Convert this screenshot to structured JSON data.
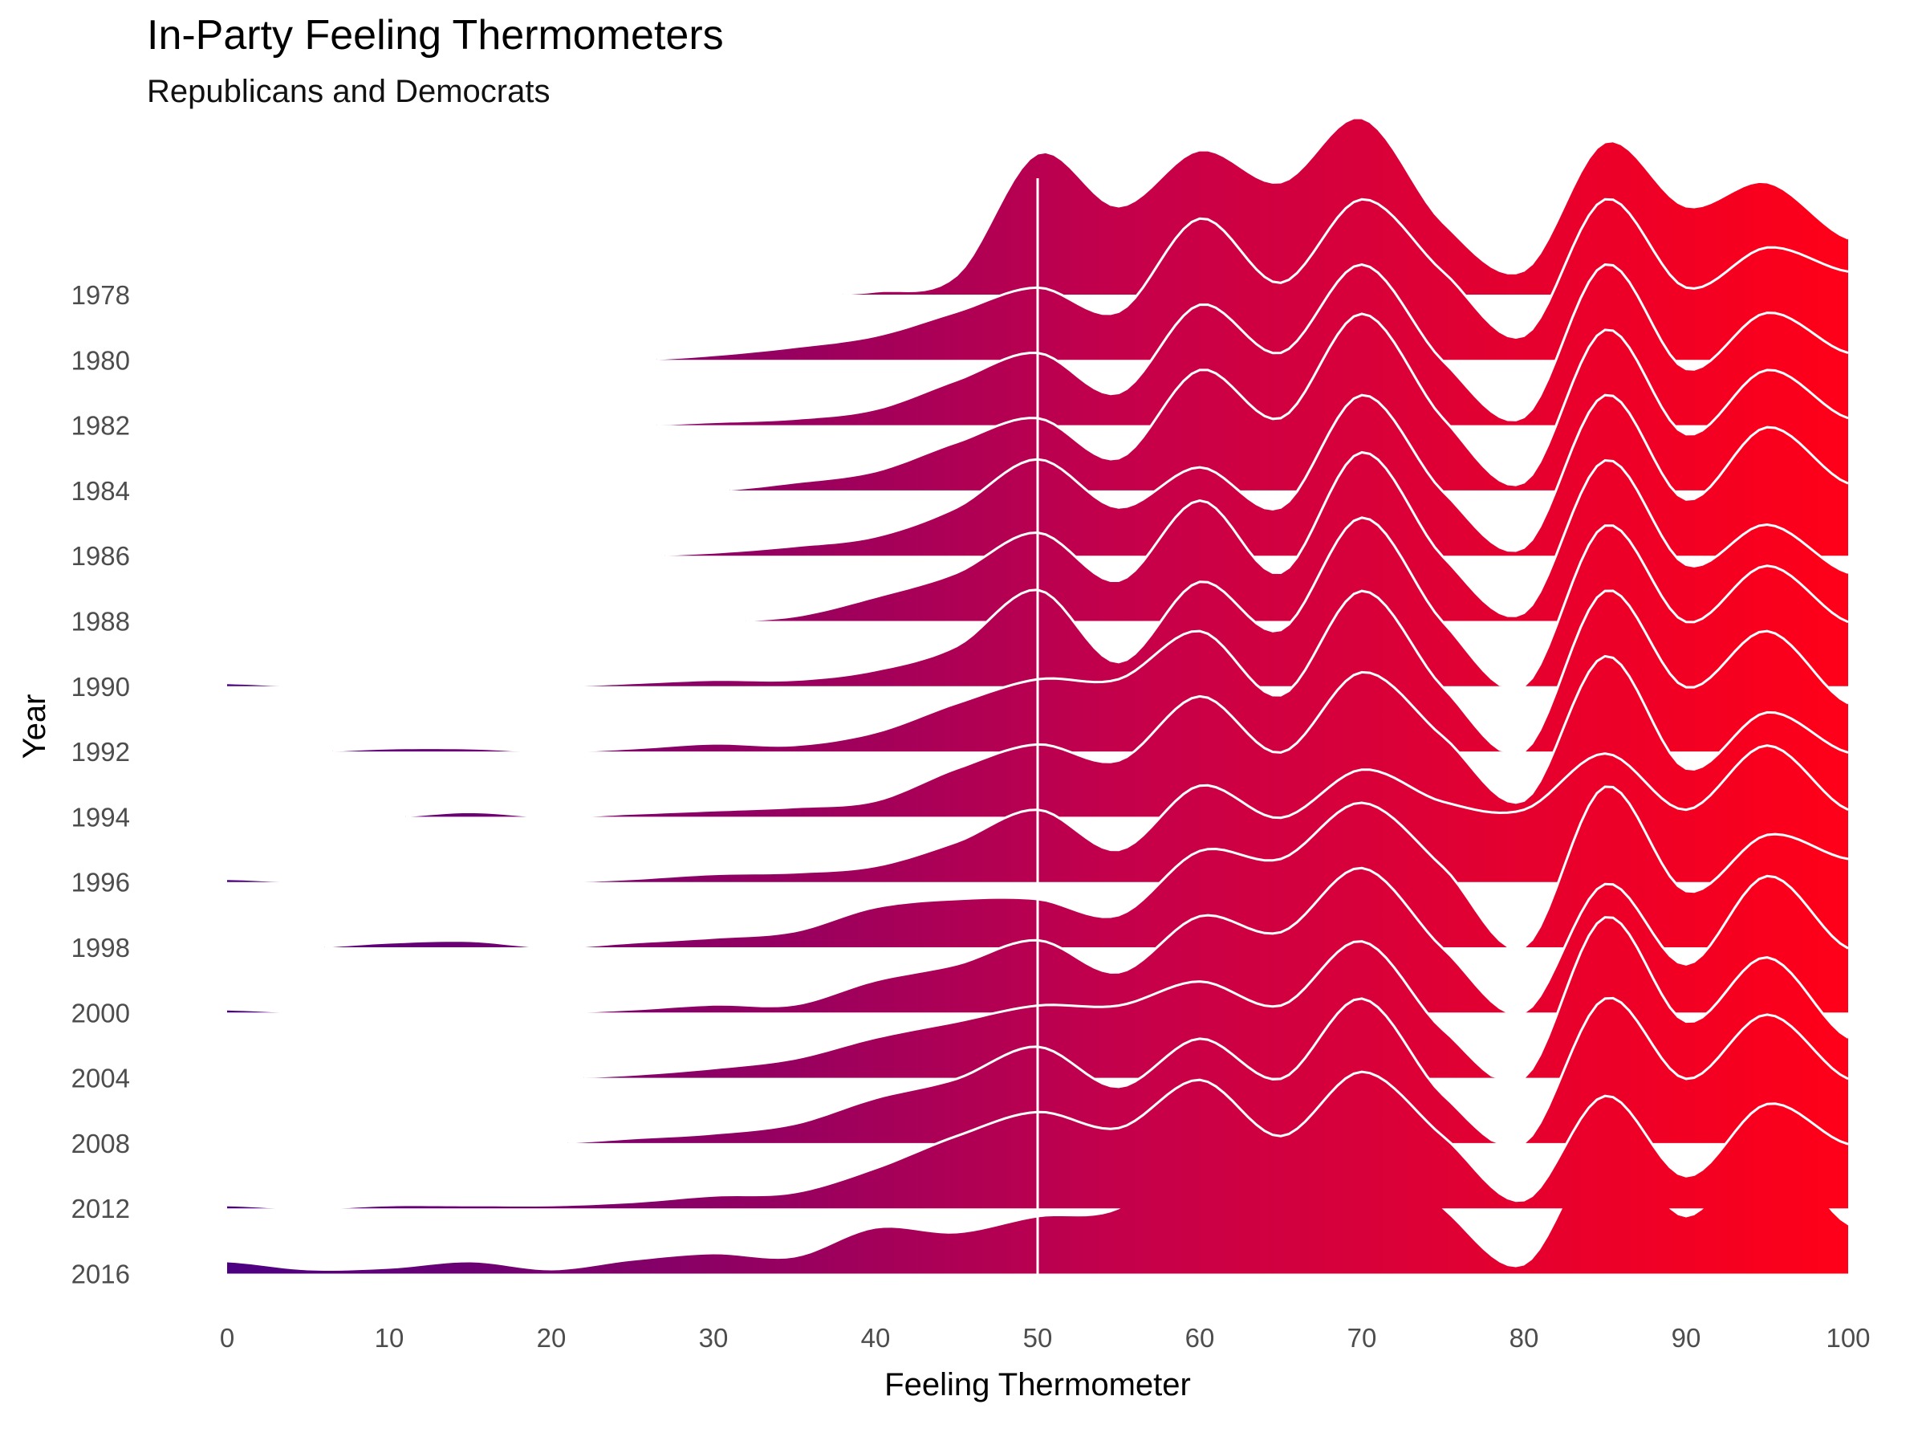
{
  "chart_data": {
    "type": "ridgeline",
    "title": "In-Party Feeling Thermometers",
    "subtitle": "Republicans and Democrats",
    "xlabel": "Feeling Thermometer",
    "ylabel": "Year",
    "xlim": [
      0,
      100
    ],
    "x_ticks": [
      0,
      10,
      20,
      30,
      40,
      50,
      60,
      70,
      80,
      90,
      100
    ],
    "years": [
      "1978",
      "1980",
      "1982",
      "1984",
      "1986",
      "1988",
      "1990",
      "1992",
      "1994",
      "1996",
      "1998",
      "2000",
      "2004",
      "2008",
      "2012",
      "2016"
    ],
    "reference_line_x": 50,
    "x_grid": [
      0,
      5,
      10,
      15,
      20,
      25,
      30,
      35,
      40,
      45,
      50,
      55,
      60,
      65,
      70,
      75,
      80,
      85,
      90,
      95,
      100
    ],
    "series": [
      {
        "year": "1978",
        "density": [
          0,
          0,
          0,
          0,
          0,
          0,
          0,
          0,
          0.02,
          0.12,
          0.88,
          0.55,
          0.9,
          0.7,
          1.1,
          0.45,
          0.15,
          0.95,
          0.55,
          0.7,
          0.35
        ]
      },
      {
        "year": "1980",
        "density": [
          0,
          0,
          0,
          0,
          0,
          0,
          0.03,
          0.08,
          0.15,
          0.3,
          0.45,
          0.3,
          0.88,
          0.48,
          1.0,
          0.55,
          0.15,
          1.0,
          0.45,
          0.7,
          0.55
        ]
      },
      {
        "year": "1982",
        "density": [
          0,
          0,
          0,
          0,
          0,
          0,
          0.02,
          0.04,
          0.1,
          0.28,
          0.45,
          0.2,
          0.75,
          0.45,
          1.0,
          0.4,
          0.05,
          1.0,
          0.35,
          0.7,
          0.45
        ]
      },
      {
        "year": "1984",
        "density": [
          0,
          0,
          0,
          0,
          0,
          0,
          0,
          0.05,
          0.12,
          0.3,
          0.45,
          0.2,
          0.75,
          0.45,
          1.1,
          0.45,
          0.05,
          1.0,
          0.35,
          0.75,
          0.45
        ]
      },
      {
        "year": "1986",
        "density": [
          0,
          0,
          0,
          0,
          0,
          0,
          0.02,
          0.06,
          0.12,
          0.3,
          0.6,
          0.3,
          0.55,
          0.3,
          1.0,
          0.4,
          0.05,
          1.0,
          0.35,
          0.8,
          0.45
        ]
      },
      {
        "year": "1988",
        "density": [
          0,
          0,
          0,
          0,
          0,
          0,
          0,
          0.03,
          0.15,
          0.3,
          0.55,
          0.25,
          0.75,
          0.3,
          1.05,
          0.4,
          0.05,
          1.0,
          0.35,
          0.6,
          0.3
        ]
      },
      {
        "year": "1990",
        "density": [
          0.02,
          0,
          0,
          0,
          0,
          0.02,
          0.04,
          0.04,
          0.1,
          0.25,
          0.6,
          0.15,
          0.65,
          0.35,
          1.05,
          0.4,
          0.0,
          1.0,
          0.4,
          0.75,
          0.4
        ]
      },
      {
        "year": "1992",
        "density": [
          0,
          0,
          0.02,
          0.02,
          0,
          0.02,
          0.05,
          0.04,
          0.12,
          0.3,
          0.45,
          0.45,
          0.75,
          0.35,
          1.0,
          0.4,
          0.0,
          1.0,
          0.4,
          0.75,
          0.3
        ]
      },
      {
        "year": "1994",
        "density": [
          0,
          0,
          0,
          0.03,
          0,
          0.02,
          0.04,
          0.06,
          0.1,
          0.3,
          0.45,
          0.35,
          0.75,
          0.4,
          0.9,
          0.5,
          0.1,
          1.0,
          0.3,
          0.65,
          0.4
        ]
      },
      {
        "year": "1996",
        "density": [
          0.02,
          0,
          0,
          0,
          0,
          0.02,
          0.05,
          0.06,
          0.1,
          0.25,
          0.45,
          0.2,
          0.6,
          0.4,
          0.7,
          0.5,
          0.45,
          0.8,
          0.45,
          0.85,
          0.45
        ]
      },
      {
        "year": "1998",
        "density": [
          0,
          0,
          0.03,
          0.04,
          0,
          0.03,
          0.06,
          0.1,
          0.25,
          0.3,
          0.3,
          0.2,
          0.6,
          0.55,
          0.9,
          0.5,
          0.0,
          1.0,
          0.35,
          0.7,
          0.55
        ]
      },
      {
        "year": "2000",
        "density": [
          0.02,
          0,
          0,
          0,
          0,
          0.02,
          0.05,
          0.05,
          0.2,
          0.3,
          0.45,
          0.25,
          0.6,
          0.5,
          0.9,
          0.4,
          0.0,
          0.8,
          0.3,
          0.85,
          0.4
        ]
      },
      {
        "year": "2004",
        "density": [
          0,
          0,
          0,
          0,
          0,
          0.02,
          0.06,
          0.12,
          0.25,
          0.35,
          0.45,
          0.45,
          0.6,
          0.45,
          0.85,
          0.3,
          0.0,
          1.0,
          0.35,
          0.75,
          0.25
        ]
      },
      {
        "year": "2008",
        "density": [
          0,
          0,
          0,
          0,
          0,
          0.03,
          0.06,
          0.12,
          0.28,
          0.4,
          0.6,
          0.35,
          0.65,
          0.4,
          0.9,
          0.3,
          0.0,
          0.9,
          0.4,
          0.8,
          0.4
        ]
      },
      {
        "year": "2012",
        "density": [
          0.02,
          0,
          0.02,
          0.02,
          0.02,
          0.04,
          0.08,
          0.1,
          0.25,
          0.45,
          0.6,
          0.5,
          0.8,
          0.45,
          0.85,
          0.45,
          0.05,
          0.7,
          0.2,
          0.65,
          0.4
        ]
      },
      {
        "year": "2016",
        "density": [
          0.07,
          0.02,
          0.03,
          0.07,
          0.02,
          0.08,
          0.12,
          0.1,
          0.28,
          0.25,
          0.35,
          0.4,
          0.8,
          0.45,
          0.9,
          0.4,
          0.05,
          0.8,
          0.35,
          0.8,
          0.3
        ]
      }
    ]
  },
  "colors": {
    "gradient_low": "#4b0082",
    "gradient_mid": "#c4004b",
    "gradient_high": "#ff0018",
    "ridge_outline": "#ffffff",
    "reference_line": "#ffffff"
  }
}
